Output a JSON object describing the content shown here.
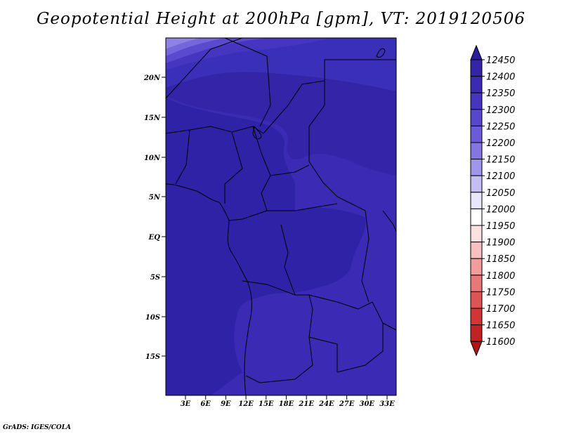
{
  "title": "Geopotential Height at 200hPa [gpm], VT: 2019120506",
  "footer": "GrADS: IGES/COLA",
  "map": {
    "lat_ticks": [
      "20N",
      "15N",
      "10N",
      "5N",
      "EQ",
      "5S",
      "10S",
      "15S"
    ],
    "lon_ticks": [
      "3E",
      "6E",
      "9E",
      "12E",
      "15E",
      "18E",
      "21E",
      "24E",
      "27E",
      "30E",
      "33E"
    ]
  },
  "colorbar": {
    "levels": [
      "12450",
      "12400",
      "12350",
      "12300",
      "12250",
      "12200",
      "12150",
      "12100",
      "12050",
      "12000",
      "11950",
      "11900",
      "11850",
      "11800",
      "11750",
      "11700",
      "11650",
      "11600"
    ],
    "colors": [
      "#2a1e9c",
      "#3324a8",
      "#3a2ab4",
      "#4535c0",
      "#5647cc",
      "#6a5bd8",
      "#8476e2",
      "#a096ec",
      "#c4bef4",
      "#e8e6fb",
      "#ffffff",
      "#fde0e0",
      "#f8c0c0",
      "#f19d9d",
      "#e87878",
      "#dd5454",
      "#d03636",
      "#c22222",
      "#b01616"
    ]
  }
}
